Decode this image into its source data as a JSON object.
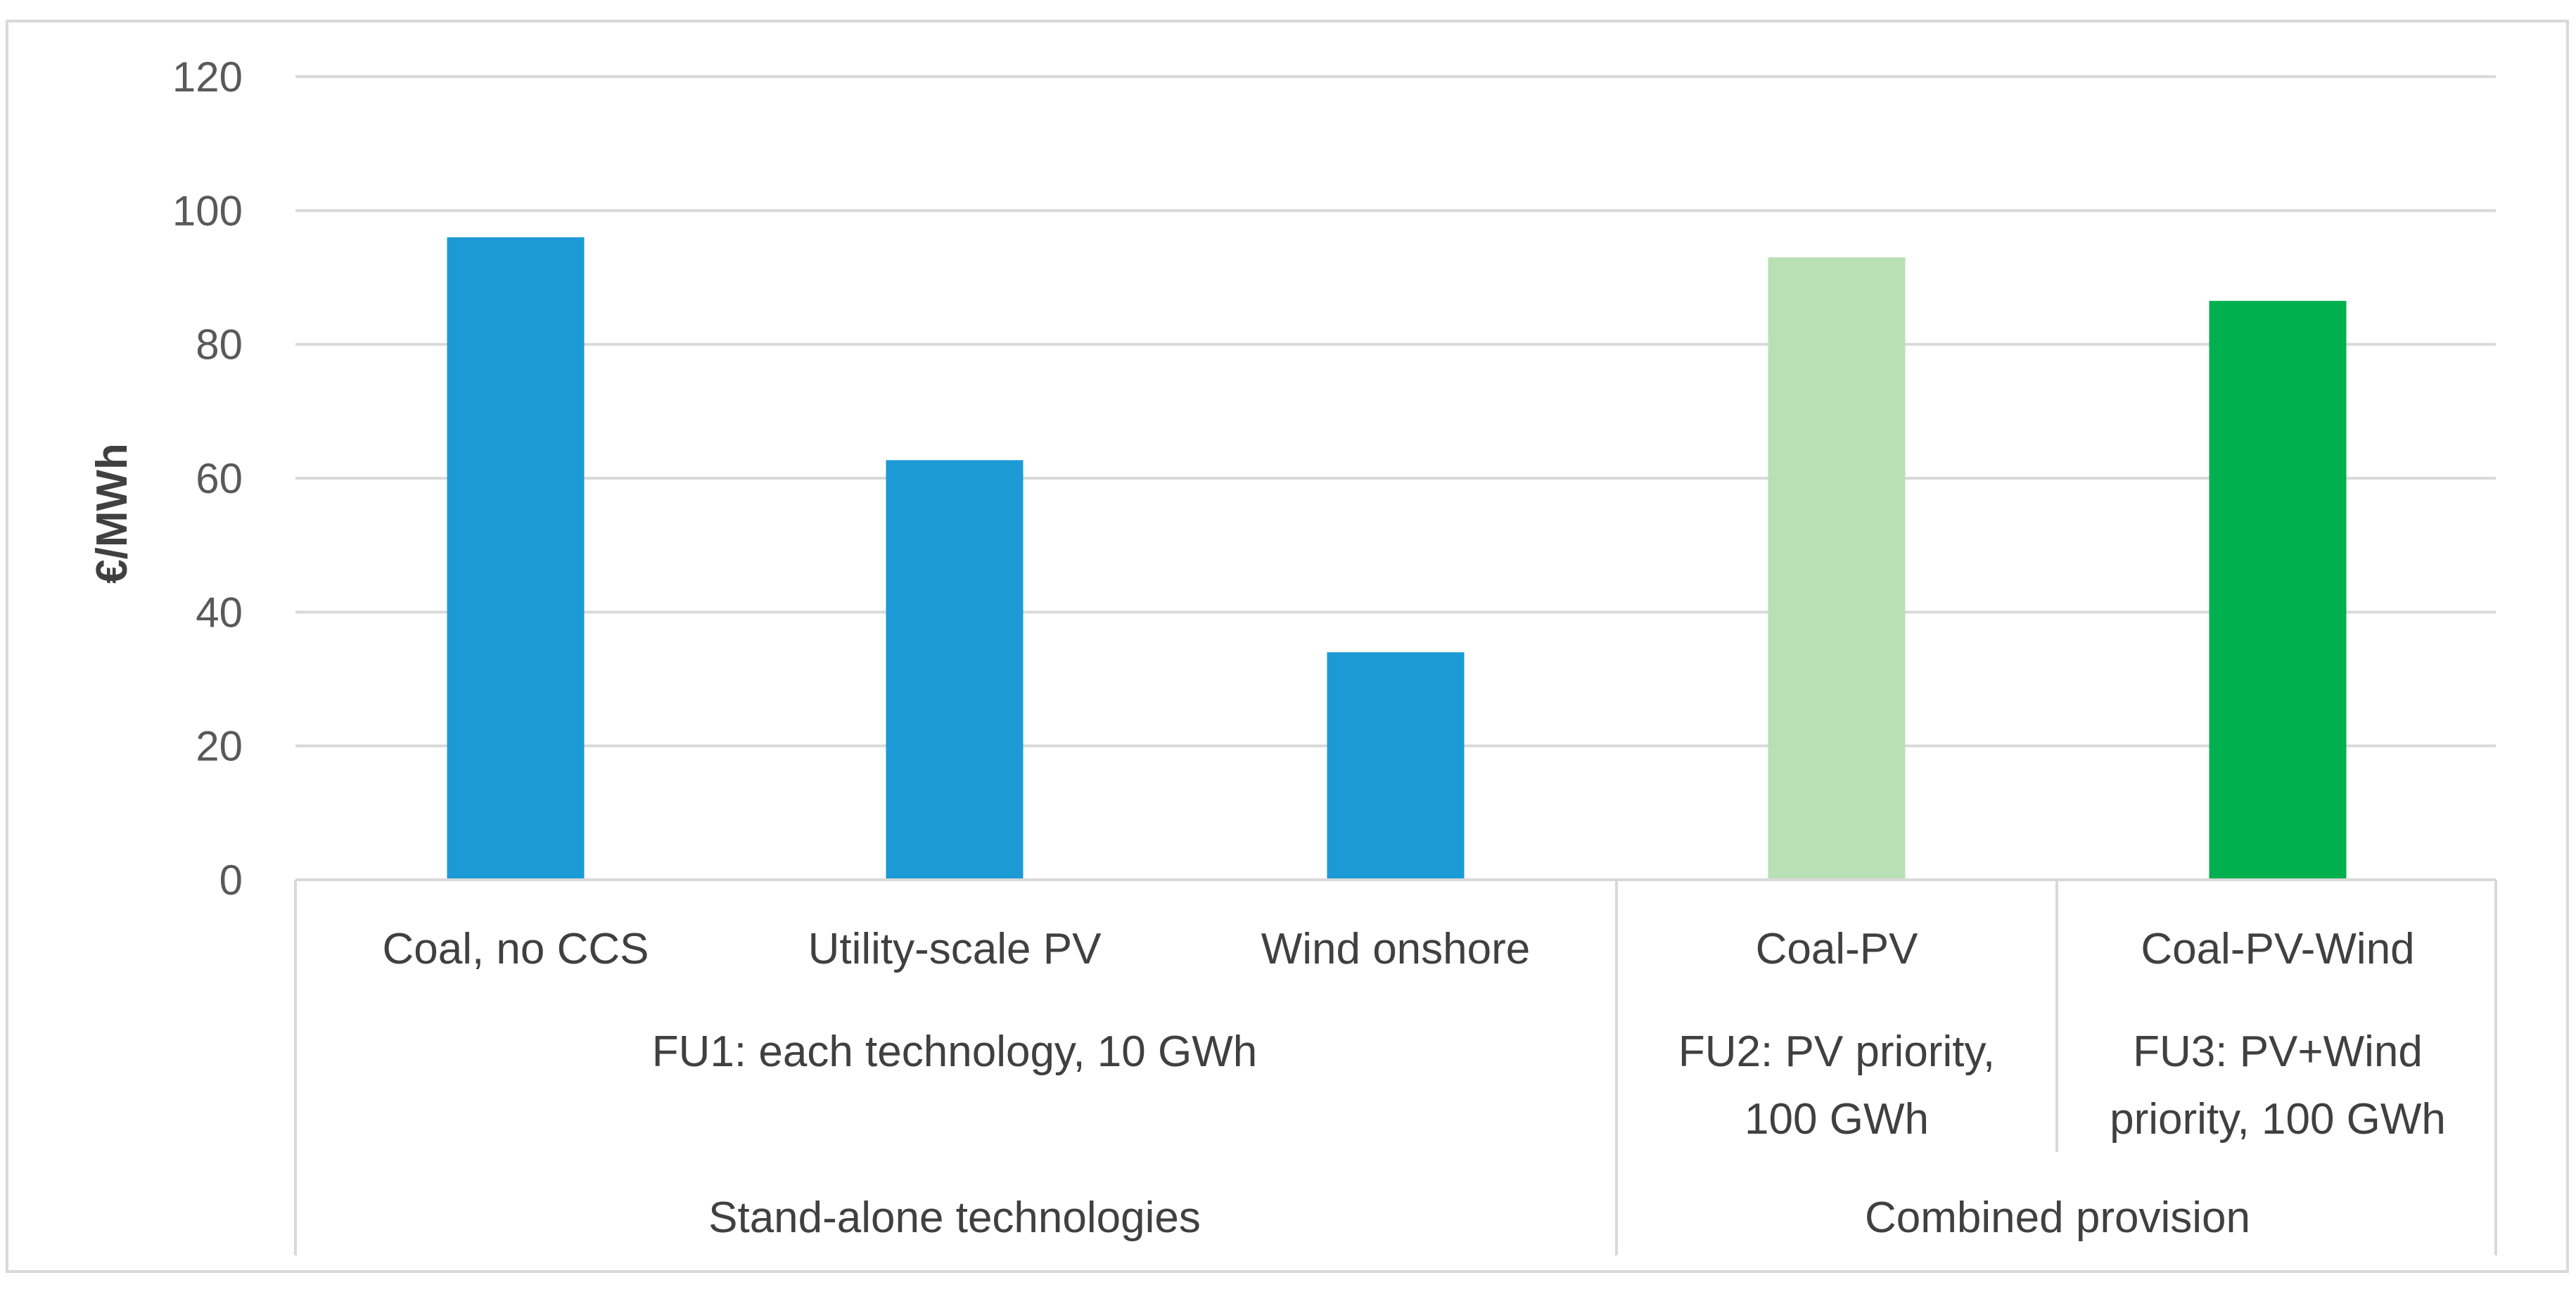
{
  "chart_data": {
    "type": "bar",
    "title": "",
    "ylabel": "€/MWh",
    "xlabel": "",
    "ylim": [
      0,
      120
    ],
    "yticks": [
      0,
      20,
      40,
      60,
      80,
      100,
      120
    ],
    "grid": true,
    "categories": [
      "Coal, no CCS",
      "Utility-scale PV",
      "Wind onshore",
      "Coal-PV",
      "Coal-PV-Wind"
    ],
    "values": [
      96,
      62.7,
      34,
      93,
      86.5
    ],
    "bar_colors": [
      "#1b9ad6",
      "#1b9ad6",
      "#1b9ad6",
      "#b9e0b4",
      "#00b04f"
    ],
    "functional_units": [
      {
        "label": "FU1: each technology, 10 GWh",
        "lines": [
          "FU1: each technology, 10 GWh"
        ]
      },
      {
        "label": "FU2: PV priority, 100 GWh",
        "lines": [
          "FU2: PV priority,",
          "100 GWh"
        ]
      },
      {
        "label": "FU3: PV+Wind priority, 100 GWh",
        "lines": [
          "FU3: PV+Wind",
          "priority, 100 GWh"
        ]
      }
    ],
    "groups": [
      {
        "label": "Stand-alone technologies"
      },
      {
        "label": "Combined provision"
      }
    ]
  },
  "colors": {
    "gridline": "#d9d9d9",
    "axis_text": "#595959",
    "label_text": "#404040",
    "frame": "#d9d9d9"
  }
}
